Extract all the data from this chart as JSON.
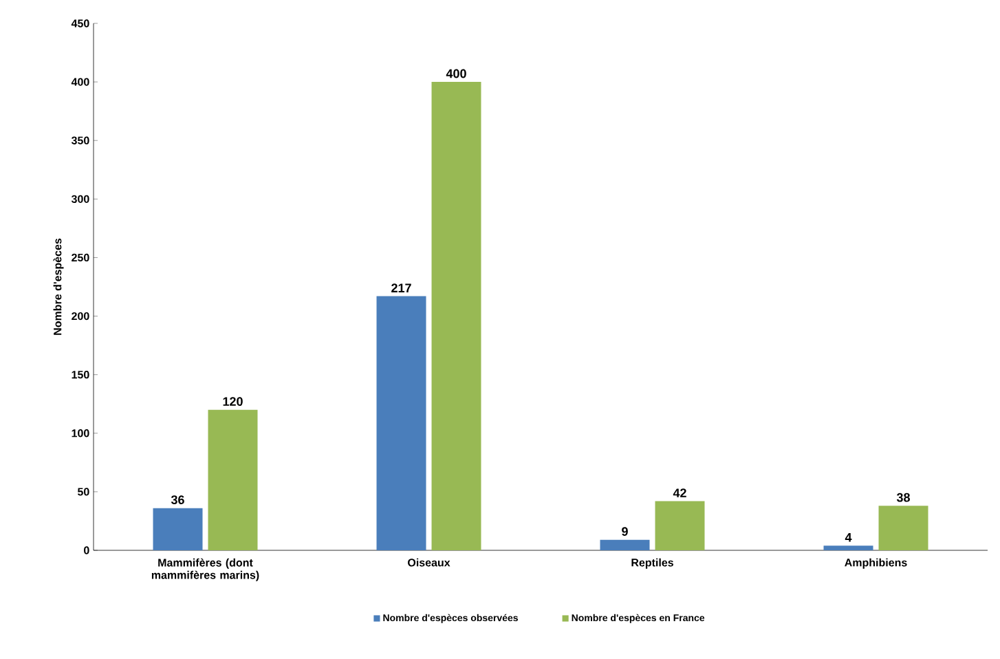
{
  "chart_data": {
    "type": "bar",
    "ylabel": "Nombre d'espèces",
    "categories": [
      "Mammifères (dont mammifères marins)",
      "Oiseaux",
      "Reptiles",
      "Amphibiens"
    ],
    "series": [
      {
        "name": "Nombre d'espèces observées",
        "color": "#4a7ebb",
        "values": [
          36,
          217,
          9,
          4
        ]
      },
      {
        "name": "Nombre d'espèces en France",
        "color": "#98b954",
        "values": [
          120,
          400,
          42,
          38
        ]
      }
    ],
    "ylim": [
      0,
      450
    ],
    "yticks": [
      0,
      50,
      100,
      150,
      200,
      250,
      300,
      350,
      400,
      450
    ],
    "data_labels": true,
    "legend": "bottom"
  }
}
